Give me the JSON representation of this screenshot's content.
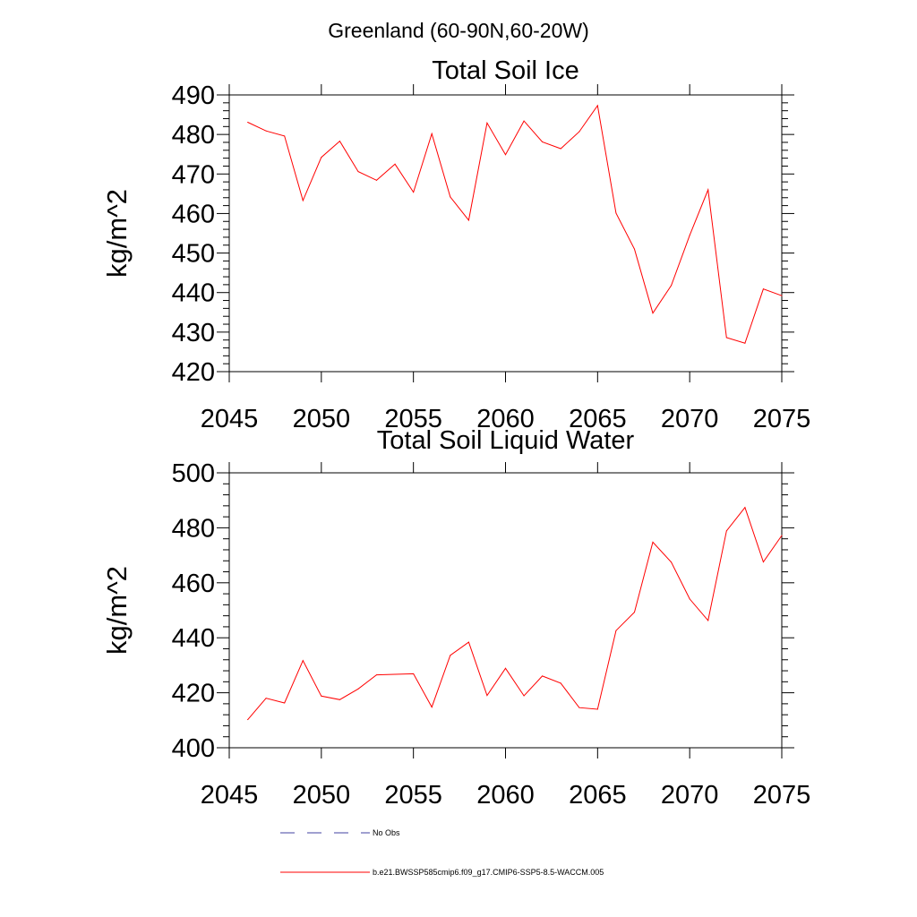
{
  "page_title": "Greenland (60-90N,60-20W)",
  "colors": {
    "series": "#ff0000",
    "no_obs": "#4040a0",
    "axis": "#000000"
  },
  "legend": {
    "no_obs_label": "No Obs",
    "series_label": "b.e21.BWSSP585cmip6.f09_g17.CMIP6-SSP5-8.5-WACCM.005"
  },
  "chart_data": [
    {
      "type": "line",
      "title": "Total Soil Ice",
      "xlabel": "",
      "ylabel": "kg/m^2",
      "xlim": [
        2045,
        2075
      ],
      "ylim": [
        420,
        490
      ],
      "xticks": [
        2045,
        2050,
        2055,
        2060,
        2065,
        2070,
        2075
      ],
      "yticks": [
        420,
        430,
        440,
        450,
        460,
        470,
        480,
        490
      ],
      "grid": false,
      "x": [
        2046,
        2047,
        2048,
        2049,
        2050,
        2051,
        2052,
        2053,
        2054,
        2055,
        2056,
        2057,
        2058,
        2059,
        2060,
        2061,
        2062,
        2063,
        2064,
        2065,
        2066,
        2067,
        2068,
        2069,
        2070,
        2071,
        2072,
        2073,
        2074,
        2075
      ],
      "series": [
        {
          "values": [
            483.1,
            480.9,
            479.6,
            463.3,
            474.2,
            478.3,
            470.6,
            468.4,
            472.5,
            465.4,
            480.2,
            464.2,
            458.3,
            482.9,
            474.9,
            483.4,
            478.1,
            476.4,
            480.7,
            487.3,
            460.1,
            451.0,
            434.8,
            441.8,
            454.5,
            466.0,
            428.6,
            427.2,
            440.9,
            439.2
          ]
        }
      ]
    },
    {
      "type": "line",
      "title": "Total Soil Liquid Water",
      "xlabel": "",
      "ylabel": "kg/m^2",
      "xlim": [
        2045,
        2075
      ],
      "ylim": [
        400,
        500
      ],
      "xticks": [
        2045,
        2050,
        2055,
        2060,
        2065,
        2070,
        2075
      ],
      "yticks": [
        400,
        420,
        440,
        460,
        480,
        500
      ],
      "grid": false,
      "x": [
        2046,
        2047,
        2048,
        2049,
        2050,
        2051,
        2052,
        2053,
        2054,
        2055,
        2056,
        2057,
        2058,
        2059,
        2060,
        2061,
        2062,
        2063,
        2064,
        2065,
        2066,
        2067,
        2068,
        2069,
        2070,
        2071,
        2072,
        2073,
        2074,
        2075
      ],
      "series": [
        {
          "values": [
            410.2,
            418.0,
            416.3,
            431.7,
            418.8,
            417.5,
            421.4,
            426.5,
            426.7,
            426.9,
            414.8,
            433.6,
            438.4,
            419.0,
            428.9,
            418.9,
            426.1,
            423.5,
            414.6,
            414.0,
            442.6,
            449.3,
            474.8,
            467.5,
            454.1,
            446.3,
            478.9,
            487.4,
            467.6,
            477.2
          ]
        }
      ]
    }
  ]
}
